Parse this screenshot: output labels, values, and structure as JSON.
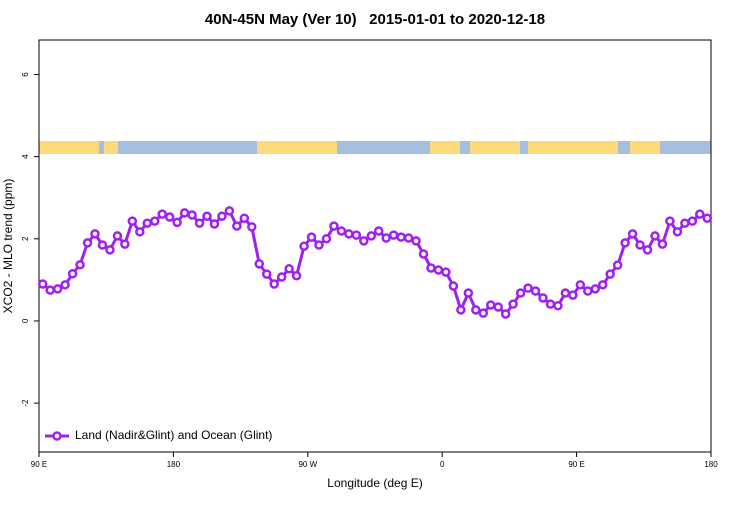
{
  "chart_data": {
    "type": "line",
    "title": "40N-45N May (Ver 10)   2015-01-01 to 2020-12-18",
    "x_label": "Longitude (deg E)",
    "y_label": "XCO2 - MLO trend (ppm)",
    "xlim": [
      90,
      540
    ],
    "ylim": [
      -3.19,
      6.84
    ],
    "xticks": [
      {
        "value": 90,
        "label": "90 E"
      },
      {
        "value": 180,
        "label": "180"
      },
      {
        "value": 270,
        "label": "90 W"
      },
      {
        "value": 360,
        "label": "0"
      },
      {
        "value": 450,
        "label": "90 E"
      },
      {
        "value": 540,
        "label": "180"
      }
    ],
    "yticks": [
      -2,
      0,
      2,
      4,
      6
    ],
    "legend": "bottomleft",
    "x": [
      92.5,
      97.5,
      102.5,
      107.5,
      112.5,
      117.5,
      122.5,
      127.5,
      132.5,
      137.5,
      142.5,
      147.5,
      152.5,
      157.5,
      162.5,
      167.5,
      172.5,
      177.5,
      182.5,
      187.5,
      192.5,
      197.5,
      202.5,
      207.5,
      212.5,
      217.5,
      222.5,
      227.5,
      232.5,
      237.5,
      242.5,
      247.5,
      252.5,
      257.5,
      262.5,
      267.5,
      272.5,
      277.5,
      282.5,
      287.5,
      292.5,
      297.5,
      302.5,
      307.5,
      312.5,
      317.5,
      322.5,
      327.5,
      332.5,
      337.5,
      342.5,
      347.5,
      352.5,
      357.5,
      362.5,
      367.5,
      372.5,
      377.5,
      382.5,
      387.5,
      392.5,
      397.5,
      402.5,
      407.5,
      412.5,
      417.5,
      422.5,
      427.5,
      432.5,
      437.5,
      442.5,
      447.5,
      452.5,
      457.5,
      462.5,
      467.5,
      472.5,
      477.5,
      482.5,
      487.5,
      492.5,
      497.5,
      502.5,
      507.5,
      512.5,
      517.5,
      522.5,
      527.5,
      532.5,
      537.5
    ],
    "series": [
      {
        "name": "Land (Nadir&Glint) and Ocean (Glint)",
        "color": "#a020f0",
        "values": [
          0.9,
          0.75,
          0.78,
          0.88,
          1.15,
          1.37,
          1.9,
          2.12,
          1.85,
          1.73,
          2.07,
          1.87,
          2.43,
          2.17,
          2.38,
          2.43,
          2.6,
          2.53,
          2.4,
          2.63,
          2.58,
          2.38,
          2.55,
          2.36,
          2.55,
          2.68,
          2.31,
          2.5,
          2.29,
          1.39,
          1.14,
          0.9,
          1.07,
          1.27,
          1.1,
          1.82,
          2.04,
          1.85,
          2.0,
          2.31,
          2.19,
          2.12,
          2.09,
          1.95,
          2.07,
          2.19,
          2.02,
          2.09,
          2.04,
          2.02,
          1.95,
          1.63,
          1.29,
          1.24,
          1.19,
          0.85,
          0.27,
          0.68,
          0.27,
          0.19,
          0.39,
          0.34,
          0.17,
          0.41,
          0.68,
          0.8,
          0.73,
          0.56,
          0.41,
          0.37,
          0.68,
          0.63,
          0.88,
          0.73,
          0.78,
          0.88,
          1.14,
          1.36,
          1.9,
          2.12,
          1.85,
          1.73,
          2.07,
          1.87,
          2.43,
          2.17,
          2.38,
          2.43,
          2.6,
          2.5
        ]
      }
    ]
  }
}
